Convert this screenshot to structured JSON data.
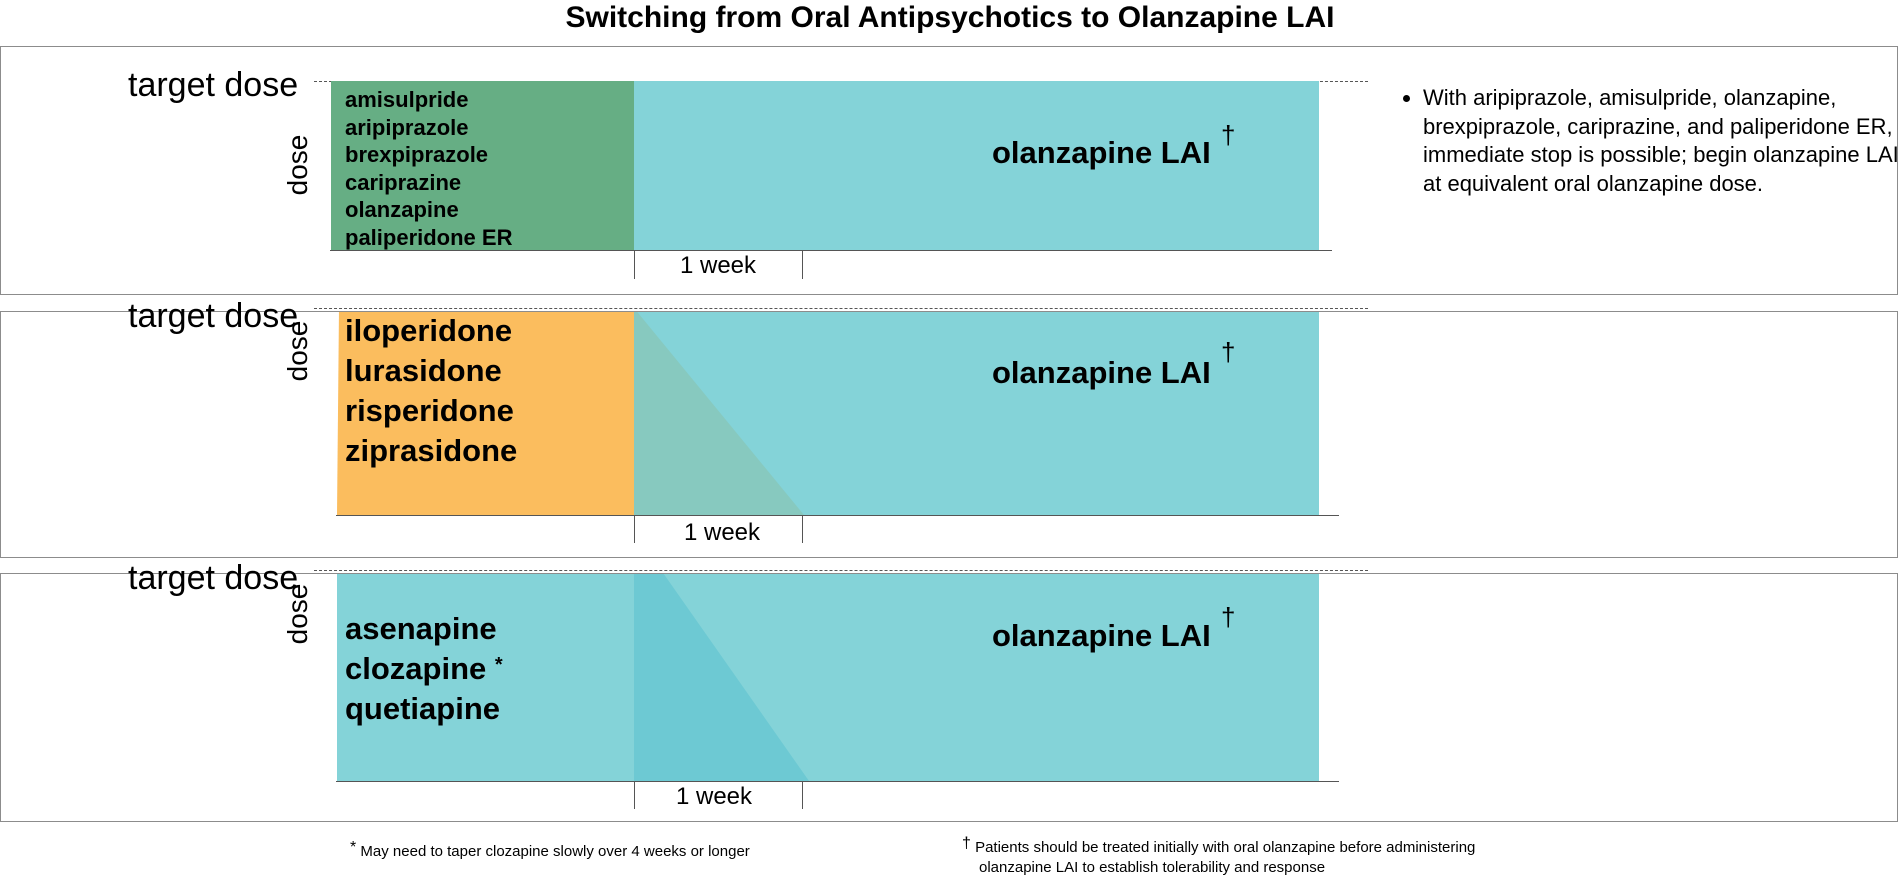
{
  "title": "Switching from Oral Antipsychotics to Olanzapine LAI",
  "colors": {
    "green": "#66ae84",
    "orange": "#fbbd5e",
    "teal": "#84d3d8",
    "overlap_teal_orange": "#87c9bf",
    "overlap_teal_teal": "#6dc9d3",
    "axis": "#555555",
    "border": "#8c8c8c"
  },
  "panels": [
    {
      "target_label": "target dose",
      "dose_label": "dose",
      "drugs": [
        "amisulpride",
        "aripiprazole",
        "brexpiprazole",
        "cariprazine",
        "olanzapine",
        "paliperidone ER"
      ],
      "lai_label": "olanzapine LAI",
      "lai_mark": "†",
      "week_label": "1 week",
      "note": "With aripiprazole, amisulpride, olanzapine, brexpiprazole, cariprazine, and paliperidone ER, immediate stop is possible; begin olanzapine LAI at equivalent oral olanzapine dose."
    },
    {
      "target_label": "target dose",
      "dose_label": "dose",
      "drugs": [
        "iloperidone",
        "lurasidone",
        "risperidone",
        "ziprasidone"
      ],
      "lai_label": "olanzapine LAI",
      "lai_mark": "†",
      "week_label": "1 week"
    },
    {
      "target_label": "target dose",
      "dose_label": "dose",
      "drugs": [
        "asenapine",
        "clozapine",
        "quetiapine"
      ],
      "clozapine_mark": "*",
      "lai_label": "olanzapine LAI",
      "lai_mark": "†",
      "week_label": "1 week"
    }
  ],
  "footnotes": [
    {
      "symbol": "*",
      "text": "May need to taper clozapine slowly over 4 weeks or longer"
    },
    {
      "symbol": "†",
      "line1": "Patients should be treated initially with oral olanzapine before administering",
      "line2": "olanzapine LAI to establish tolerability and response"
    }
  ]
}
